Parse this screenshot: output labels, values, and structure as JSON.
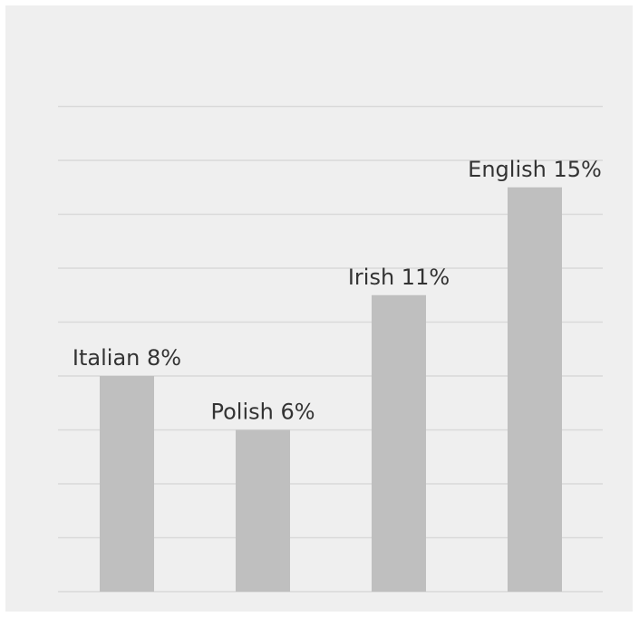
{
  "chart_data": {
    "type": "bar",
    "title": "",
    "xlabel": "",
    "ylabel": "",
    "categories": [
      "Italian",
      "Polish",
      "Irish",
      "English"
    ],
    "values": [
      8,
      6,
      11,
      15
    ],
    "data_labels": [
      "Italian 8%",
      "Polish 6%",
      "Irish 11%",
      "English 15%"
    ],
    "ylim": [
      0,
      18
    ],
    "grid": true,
    "legend": "none",
    "colors": {
      "bar": "#bfbfbf",
      "gridline": "#d9d9d9",
      "background": "#efefef",
      "label": "#333333"
    }
  }
}
